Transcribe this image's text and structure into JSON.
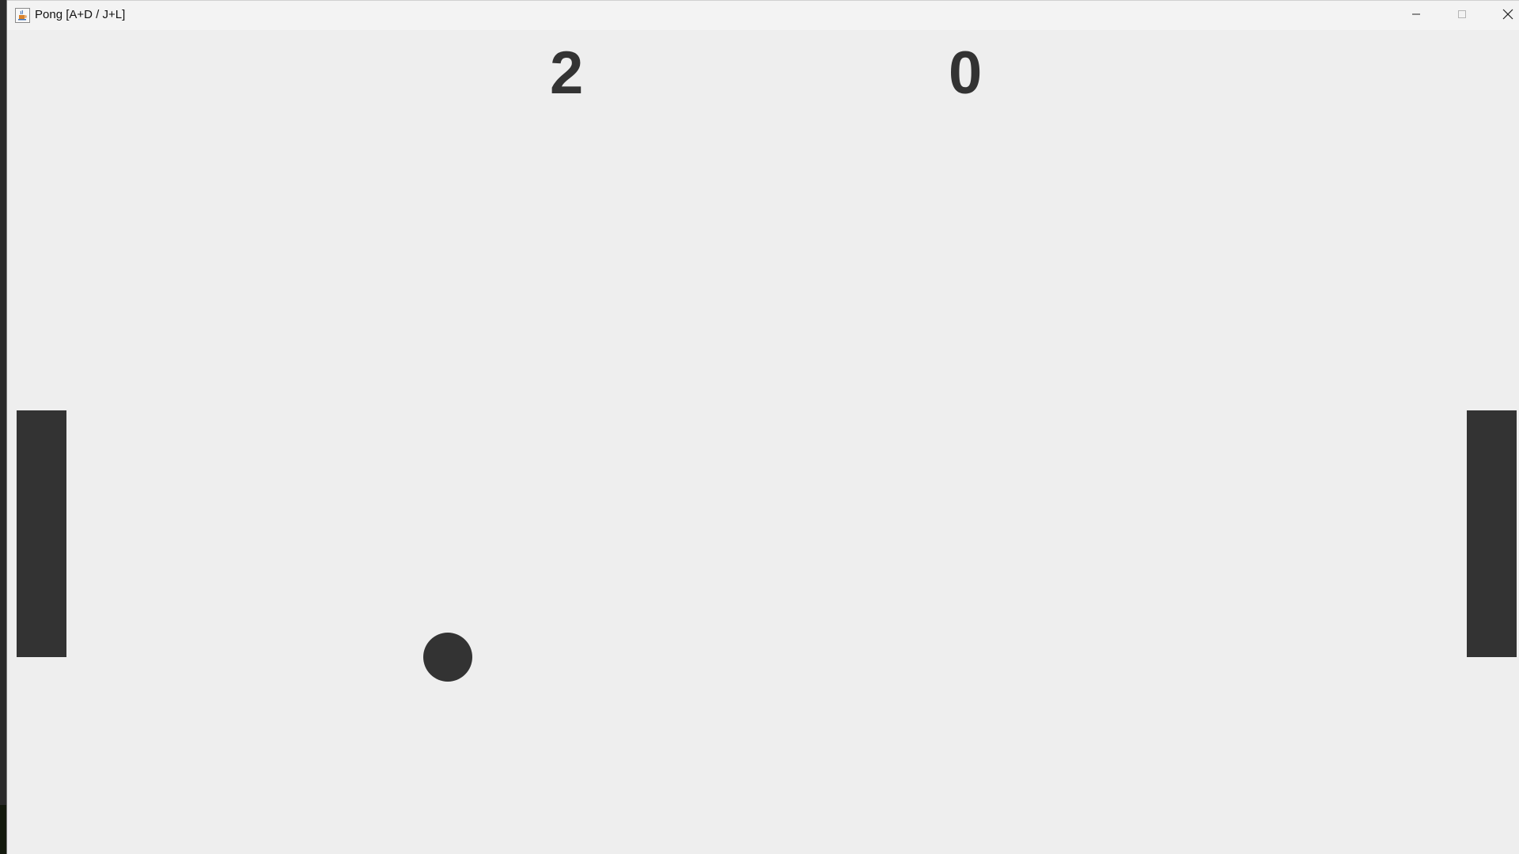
{
  "window": {
    "title": "Pong [A+D / J+L]",
    "icon": "java-cup-icon",
    "controls": {
      "minimize_icon": "minimize-icon",
      "maximize_icon": "maximize-icon",
      "close_icon": "close-icon"
    }
  },
  "game": {
    "score_left": "2",
    "score_right": "0",
    "colors": {
      "background": "#eeeeee",
      "foreground": "#333333"
    }
  }
}
